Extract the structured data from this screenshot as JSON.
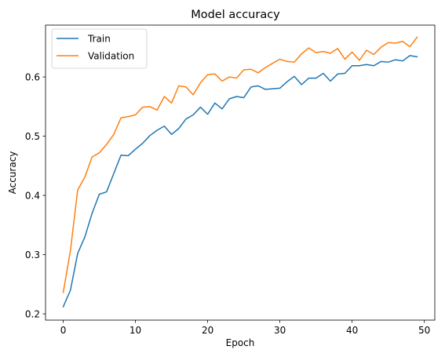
{
  "chart_data": {
    "type": "line",
    "title": "Model accuracy",
    "xlabel": "Epoch",
    "ylabel": "Accuracy",
    "xlim": [
      -2.45,
      51.45
    ],
    "ylim": [
      0.1895,
      0.6875
    ],
    "xticks": [
      0,
      10,
      20,
      30,
      40,
      50
    ],
    "yticks": [
      0.2,
      0.3,
      0.4,
      0.5,
      0.6
    ],
    "ytick_labels": [
      "0.2",
      "0.3",
      "0.4",
      "0.5",
      "0.6"
    ],
    "legend_position": "upper-left",
    "grid": false,
    "x": [
      0,
      1,
      2,
      3,
      4,
      5,
      6,
      7,
      8,
      9,
      10,
      11,
      12,
      13,
      14,
      15,
      16,
      17,
      18,
      19,
      20,
      21,
      22,
      23,
      24,
      25,
      26,
      27,
      28,
      29,
      30,
      31,
      32,
      33,
      34,
      35,
      36,
      37,
      38,
      39,
      40,
      41,
      42,
      43,
      44,
      45,
      46,
      47,
      48,
      49
    ],
    "series": [
      {
        "name": "Train",
        "color": "#1f77b4",
        "values": [
          0.212,
          0.24,
          0.302,
          0.33,
          0.37,
          0.402,
          0.406,
          0.437,
          0.468,
          0.467,
          0.478,
          0.488,
          0.501,
          0.51,
          0.517,
          0.503,
          0.513,
          0.529,
          0.536,
          0.549,
          0.537,
          0.556,
          0.546,
          0.563,
          0.567,
          0.565,
          0.583,
          0.585,
          0.579,
          0.58,
          0.581,
          0.592,
          0.601,
          0.587,
          0.598,
          0.598,
          0.606,
          0.593,
          0.605,
          0.606,
          0.619,
          0.619,
          0.621,
          0.619,
          0.626,
          0.625,
          0.629,
          0.627,
          0.636,
          0.634
        ]
      },
      {
        "name": "Validation",
        "color": "#ff7f0e",
        "values": [
          0.236,
          0.307,
          0.409,
          0.431,
          0.465,
          0.472,
          0.486,
          0.503,
          0.531,
          0.533,
          0.536,
          0.549,
          0.55,
          0.544,
          0.567,
          0.556,
          0.585,
          0.583,
          0.57,
          0.59,
          0.604,
          0.605,
          0.593,
          0.6,
          0.598,
          0.612,
          0.613,
          0.607,
          0.616,
          0.623,
          0.63,
          0.626,
          0.625,
          0.639,
          0.649,
          0.641,
          0.643,
          0.64,
          0.648,
          0.63,
          0.642,
          0.628,
          0.645,
          0.638,
          0.65,
          0.658,
          0.657,
          0.66,
          0.651,
          0.667
        ]
      }
    ]
  }
}
